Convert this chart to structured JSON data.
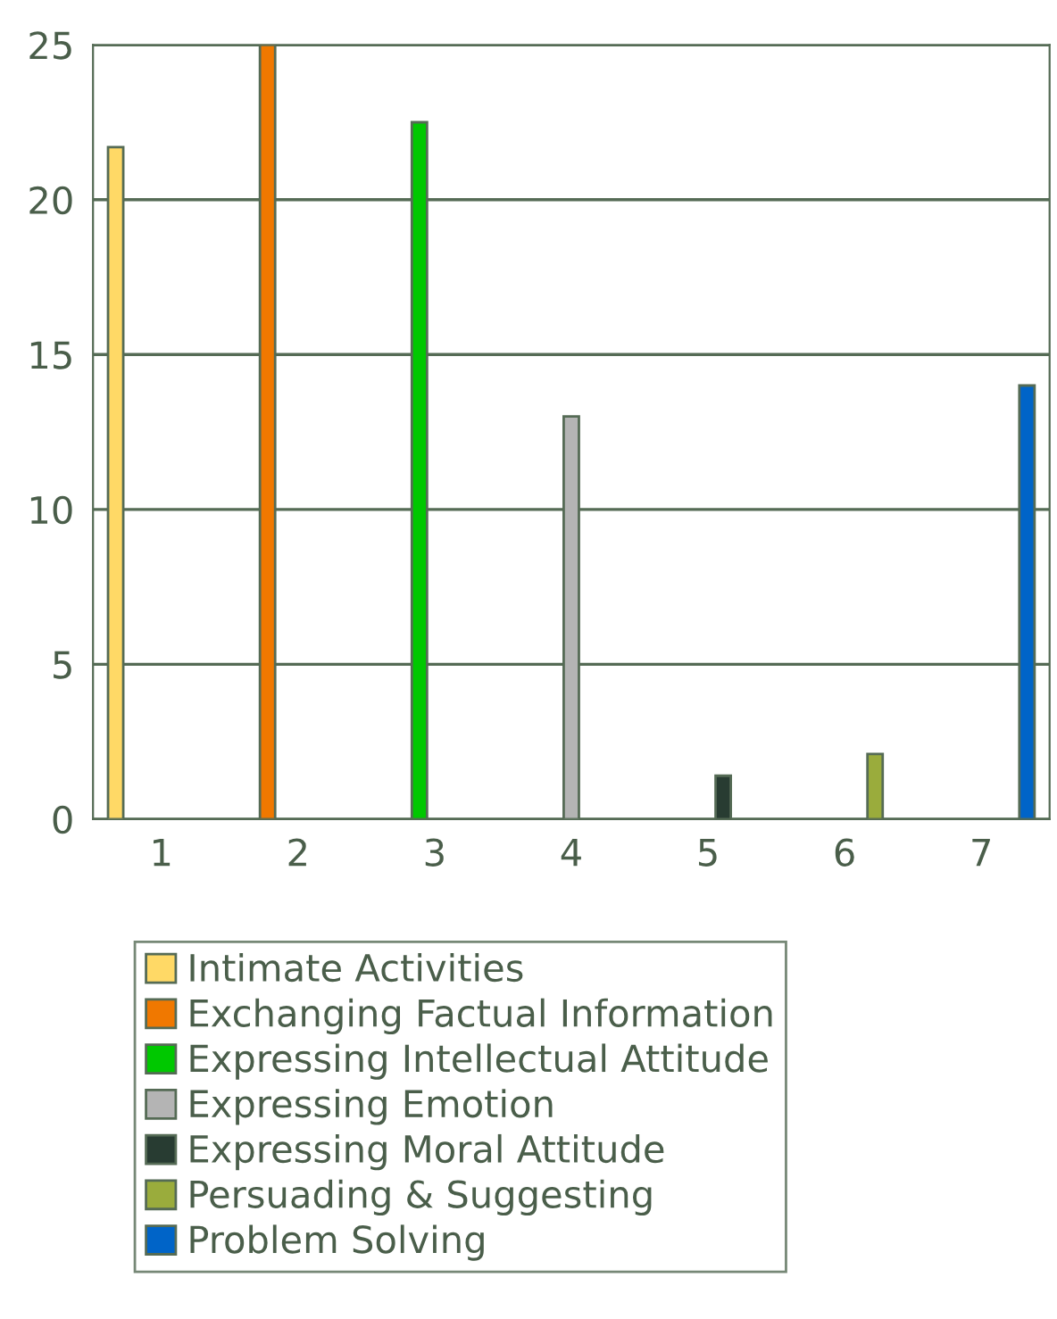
{
  "chart_data": {
    "type": "bar",
    "categories": [
      "1",
      "2",
      "3",
      "4",
      "5",
      "6",
      "7"
    ],
    "series": [
      {
        "name": "Intimate Activities",
        "color": "#ffd966",
        "values": [
          21.7,
          null,
          null,
          null,
          null,
          null,
          null
        ]
      },
      {
        "name": "Exchanging Factual Information",
        "color": "#f07800",
        "values": [
          null,
          25,
          null,
          null,
          null,
          null,
          null
        ]
      },
      {
        "name": "Expressing Intellectual Attitude",
        "color": "#00c800",
        "values": [
          null,
          null,
          22.5,
          null,
          null,
          null,
          null
        ]
      },
      {
        "name": "Expressing Emotion",
        "color": "#b4b4b4",
        "values": [
          null,
          null,
          null,
          13,
          null,
          null,
          null
        ]
      },
      {
        "name": "Expressing Moral Attitude",
        "color": "#283c32",
        "values": [
          null,
          null,
          null,
          null,
          1.4,
          null,
          null
        ]
      },
      {
        "name": "Persuading & Suggesting",
        "color": "#9aac3c",
        "values": [
          null,
          null,
          null,
          null,
          null,
          2.1,
          null
        ]
      },
      {
        "name": "Problem Solving",
        "color": "#0064c8",
        "values": [
          null,
          null,
          null,
          null,
          null,
          null,
          14
        ]
      }
    ],
    "ylim": [
      0,
      25
    ],
    "yticks": [
      0,
      5,
      10,
      15,
      20,
      25
    ],
    "grid": "y",
    "legend": "bottom"
  }
}
